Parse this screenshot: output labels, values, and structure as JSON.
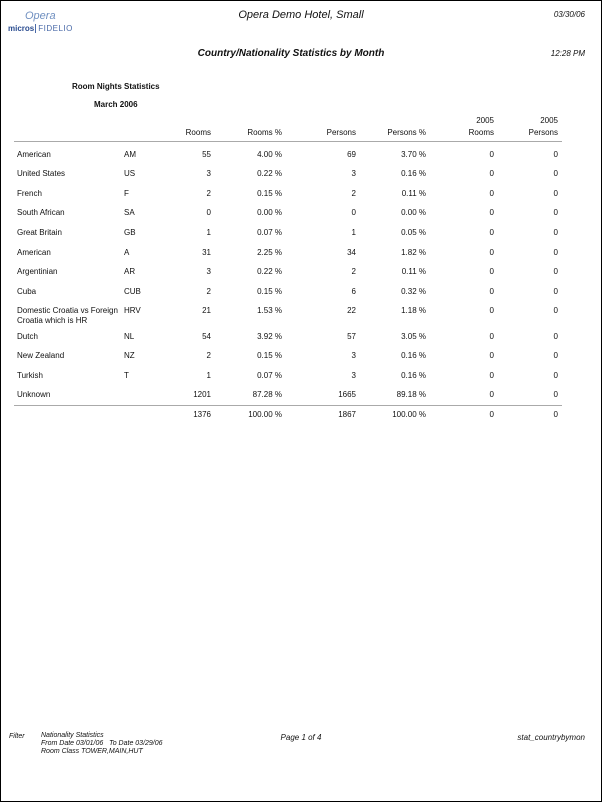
{
  "header": {
    "logo_top": "Opera",
    "logo_bottom_brand": "micros",
    "logo_bottom_sub": "FIDELIO",
    "hotel": "Opera Demo Hotel, Small",
    "date": "03/30/06",
    "title": "Country/Nationality Statistics by Month",
    "time": "12:28 PM"
  },
  "section": {
    "heading": "Room Nights Statistics",
    "period": "March 2006"
  },
  "columns": {
    "rooms": "Rooms",
    "rooms_pct": "Rooms %",
    "persons": "Persons",
    "persons_pct": "Persons %",
    "rooms_2005_year": "2005",
    "rooms_2005": "Rooms",
    "persons_2005_year": "2005",
    "persons_2005": "Persons"
  },
  "rows": [
    {
      "name": "American",
      "code": "AM",
      "rooms": "55",
      "rooms_pct": "4.00 %",
      "persons": "69",
      "persons_pct": "3.70 %",
      "rooms_2005": "0",
      "persons_2005": "0"
    },
    {
      "name": "United States",
      "code": "US",
      "rooms": "3",
      "rooms_pct": "0.22 %",
      "persons": "3",
      "persons_pct": "0.16 %",
      "rooms_2005": "0",
      "persons_2005": "0"
    },
    {
      "name": "French",
      "code": "F",
      "rooms": "2",
      "rooms_pct": "0.15 %",
      "persons": "2",
      "persons_pct": "0.11 %",
      "rooms_2005": "0",
      "persons_2005": "0"
    },
    {
      "name": "South African",
      "code": "SA",
      "rooms": "0",
      "rooms_pct": "0.00 %",
      "persons": "0",
      "persons_pct": "0.00 %",
      "rooms_2005": "0",
      "persons_2005": "0"
    },
    {
      "name": "Great Britain",
      "code": "GB",
      "rooms": "1",
      "rooms_pct": "0.07 %",
      "persons": "1",
      "persons_pct": "0.05 %",
      "rooms_2005": "0",
      "persons_2005": "0"
    },
    {
      "name": "American",
      "code": "A",
      "rooms": "31",
      "rooms_pct": "2.25 %",
      "persons": "34",
      "persons_pct": "1.82 %",
      "rooms_2005": "0",
      "persons_2005": "0"
    },
    {
      "name": "Argentinian",
      "code": "AR",
      "rooms": "3",
      "rooms_pct": "0.22 %",
      "persons": "2",
      "persons_pct": "0.11 %",
      "rooms_2005": "0",
      "persons_2005": "0"
    },
    {
      "name": "Cuba",
      "code": "CUB",
      "rooms": "2",
      "rooms_pct": "0.15 %",
      "persons": "6",
      "persons_pct": "0.32 %",
      "rooms_2005": "0",
      "persons_2005": "0"
    },
    {
      "name": "Domestic Croatia vs Foreign",
      "name2": "Croatia which is HR",
      "code": "HRV",
      "rooms": "21",
      "rooms_pct": "1.53 %",
      "persons": "22",
      "persons_pct": "1.18 %",
      "rooms_2005": "0",
      "persons_2005": "0"
    },
    {
      "name": "Dutch",
      "code": "NL",
      "rooms": "54",
      "rooms_pct": "3.92 %",
      "persons": "57",
      "persons_pct": "3.05 %",
      "rooms_2005": "0",
      "persons_2005": "0"
    },
    {
      "name": "New Zealand",
      "code": "NZ",
      "rooms": "2",
      "rooms_pct": "0.15 %",
      "persons": "3",
      "persons_pct": "0.16 %",
      "rooms_2005": "0",
      "persons_2005": "0"
    },
    {
      "name": "Turkish",
      "code": "T",
      "rooms": "1",
      "rooms_pct": "0.07 %",
      "persons": "3",
      "persons_pct": "0.16 %",
      "rooms_2005": "0",
      "persons_2005": "0"
    },
    {
      "name": "Unknown",
      "code": "",
      "rooms": "1201",
      "rooms_pct": "87.28 %",
      "persons": "1665",
      "persons_pct": "89.18 %",
      "rooms_2005": "0",
      "persons_2005": "0"
    }
  ],
  "totals": {
    "rooms": "1376",
    "rooms_pct": "100.00 %",
    "persons": "1867",
    "persons_pct": "100.00 %",
    "rooms_2005": "0",
    "persons_2005": "0"
  },
  "footer": {
    "filter_label": "Filter",
    "line1": "Nationality Statistics",
    "line2": "From Date 03/01/06   To Date 03/29/06",
    "line3": "Room Class TOWER,MAIN,HUT",
    "page": "Page 1 of 4",
    "report_id": "stat_countrybymon"
  }
}
